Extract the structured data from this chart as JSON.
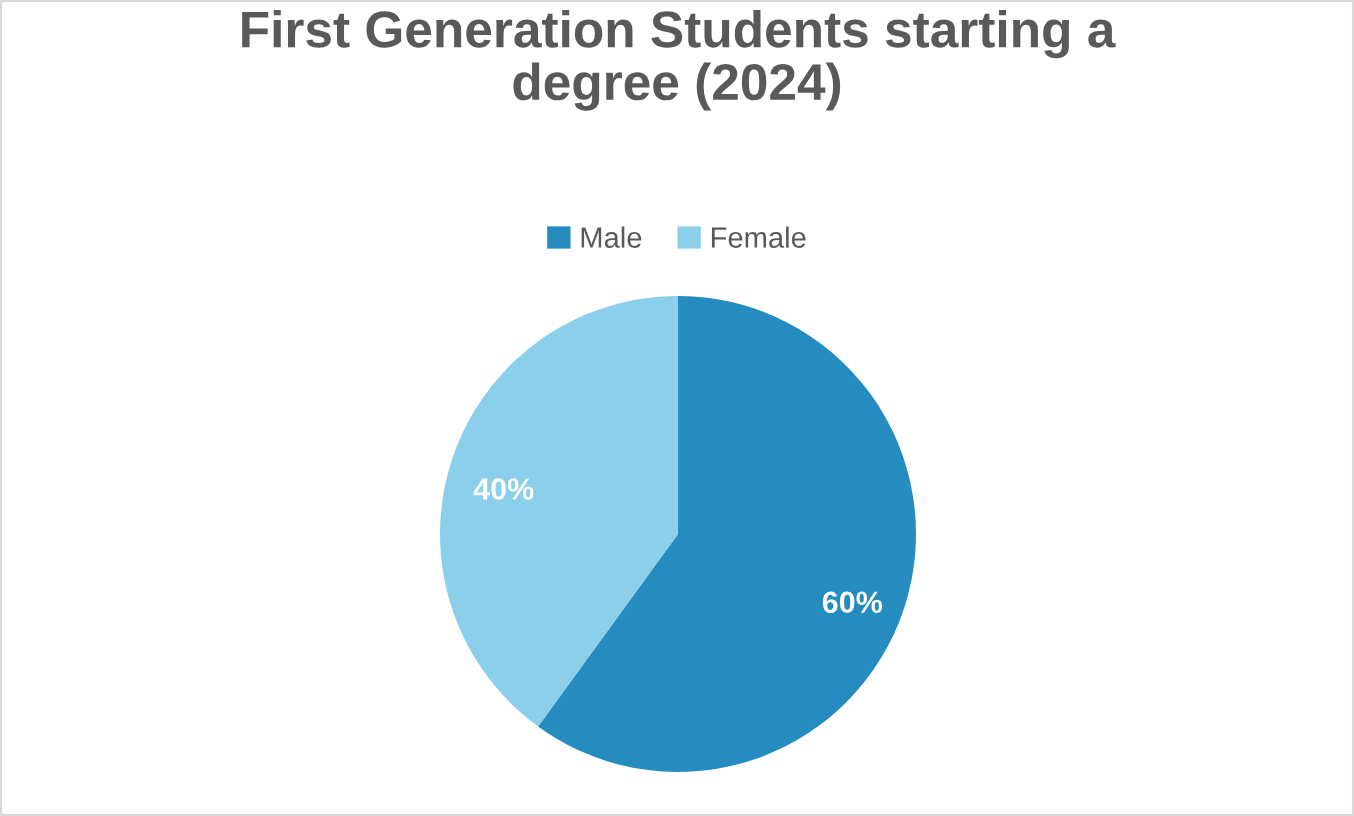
{
  "chart_data": {
    "type": "pie",
    "title": "First Generation Students starting a degree (2024)",
    "categories": [
      "Male",
      "Female"
    ],
    "values": [
      60,
      40
    ],
    "colors": [
      "#268bbe",
      "#8ccfea"
    ],
    "value_labels": [
      "60%",
      "40%"
    ],
    "legend": "top"
  }
}
